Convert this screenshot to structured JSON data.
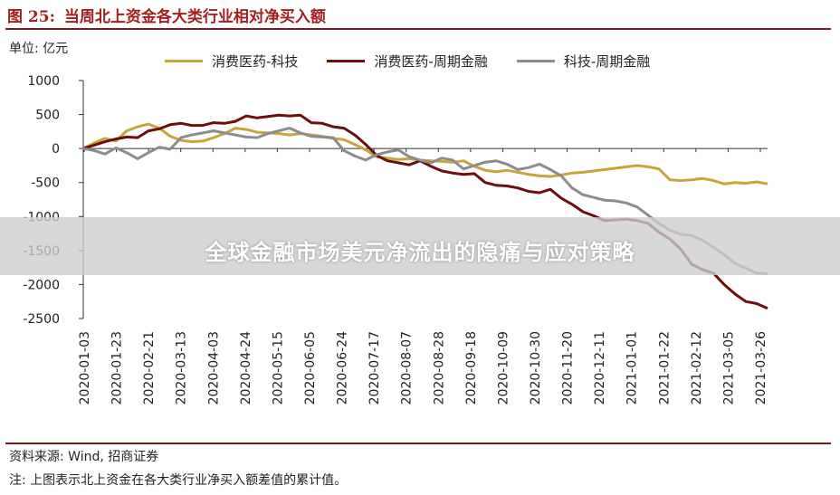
{
  "figure": {
    "number": "图 25:",
    "title": "当周北上资金各大类行业相对净买入额",
    "unit": "单位: 亿元",
    "source": "资料来源: Wind, 招商证券",
    "note": "注: 上图表示北上资金在各大类行业净买入额差值的累计值。"
  },
  "overlay": {
    "text": "全球金融市场美元净流出的隐痛与应对策略"
  },
  "colors": {
    "title": "#a31f1f",
    "rule": "#7b1a1a",
    "series1": "#c8a53a",
    "series2": "#6b0e0e",
    "series3": "#8c8c8c"
  },
  "chart_data": {
    "type": "line",
    "ylim": [
      -2500,
      1000
    ],
    "yticks": [
      1000,
      500,
      0,
      -500,
      -1000,
      -1500,
      -2000,
      -2500
    ],
    "xtick_labels": [
      "2020-01-03",
      "2020-01-23",
      "2020-02-21",
      "2020-03-13",
      "2020-04-03",
      "2020-04-24",
      "2020-05-15",
      "2020-06-05",
      "2020-06-24",
      "2020-07-17",
      "2020-08-07",
      "2020-08-28",
      "2020-09-18",
      "2020-10-09",
      "2020-10-30",
      "2020-11-20",
      "2020-12-11",
      "2021-01-01",
      "2021-01-22",
      "2021-02-12",
      "2021-03-05",
      "2021-03-26"
    ],
    "n_points": 64,
    "series": [
      {
        "name": "消费医药-科技",
        "color": "#c8a53a",
        "values": [
          0,
          80,
          150,
          110,
          260,
          320,
          360,
          300,
          180,
          120,
          100,
          110,
          160,
          220,
          300,
          280,
          240,
          230,
          220,
          200,
          220,
          200,
          180,
          150,
          130,
          60,
          -20,
          -120,
          -140,
          -160,
          -150,
          -170,
          -180,
          -190,
          -200,
          -180,
          -260,
          -320,
          -340,
          -320,
          -350,
          -380,
          -400,
          -410,
          -390,
          -360,
          -350,
          -330,
          -310,
          -290,
          -270,
          -250,
          -270,
          -300,
          -460,
          -470,
          -460,
          -440,
          -470,
          -520,
          -500,
          -510,
          -490,
          -520
        ]
      },
      {
        "name": "消费医药-周期金融",
        "color": "#6b0e0e",
        "values": [
          0,
          50,
          100,
          140,
          170,
          160,
          260,
          290,
          350,
          370,
          340,
          340,
          380,
          370,
          400,
          480,
          450,
          470,
          490,
          480,
          490,
          380,
          370,
          320,
          300,
          200,
          60,
          -100,
          -180,
          -210,
          -240,
          -180,
          -260,
          -330,
          -360,
          -380,
          -370,
          -500,
          -540,
          -550,
          -580,
          -630,
          -650,
          -600,
          -730,
          -820,
          -930,
          -990,
          -1060,
          -1050,
          -1040,
          -1060,
          -1100,
          -1230,
          -1330,
          -1480,
          -1700,
          -1780,
          -1830,
          -2000,
          -2140,
          -2250,
          -2280,
          -2350
        ]
      },
      {
        "name": "科技-周期金融",
        "color": "#8c8c8c",
        "values": [
          0,
          -30,
          -80,
          10,
          -60,
          -150,
          -60,
          20,
          -10,
          160,
          200,
          230,
          260,
          230,
          200,
          170,
          160,
          220,
          260,
          300,
          230,
          180,
          170,
          160,
          -30,
          -110,
          -170,
          -90,
          -50,
          -20,
          -120,
          -170,
          -210,
          -140,
          -170,
          -300,
          -250,
          -200,
          -180,
          -230,
          -310,
          -280,
          -230,
          -310,
          -400,
          -580,
          -680,
          -720,
          -760,
          -770,
          -800,
          -860,
          -980,
          -1100,
          -1200,
          -1260,
          -1280,
          -1350,
          -1450,
          -1560,
          -1690,
          -1760,
          -1830,
          -1840
        ]
      }
    ]
  }
}
